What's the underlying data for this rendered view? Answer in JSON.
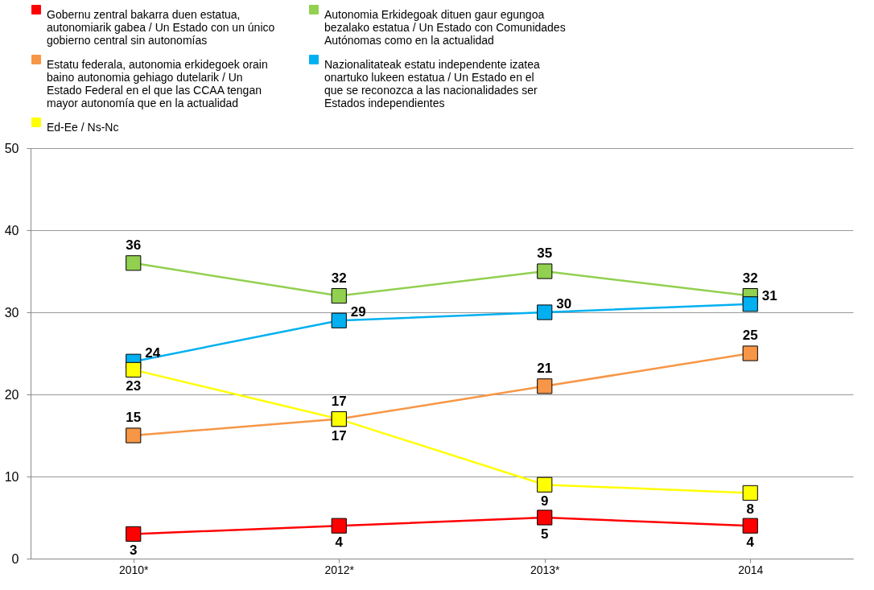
{
  "chart_data": {
    "type": "line",
    "categories": [
      "2010*",
      "2012*",
      "2013*",
      "2014"
    ],
    "series": [
      {
        "name": "Gobernu zentral bakarra duen estatua, autonomiarik gabea / Un Estado con un único gobierno central sin autonomías",
        "color": "#ff0000",
        "values": [
          3,
          4,
          5,
          4
        ]
      },
      {
        "name": "Autonomia Erkidegoak dituen gaur egungoa bezalako estatua / Un Estado con Comunidades Autónomas como en la actualidad",
        "color": "#92d050",
        "values": [
          36,
          32,
          35,
          32
        ]
      },
      {
        "name": "Estatu federala, autonomia erkidegoek orain baino autonomia gehiago dutelarik / Un Estado Federal en el que las CCAA tengan mayor autonomía que en la actualidad",
        "color": "#f79646",
        "values": [
          15,
          17,
          21,
          25
        ]
      },
      {
        "name": "Nazionalitateak estatu independente izatea onartuko lukeen estatua / Un Estado en el que se reconozca a las nacionalidades ser Estados independientes",
        "color": "#00b0f0",
        "values": [
          24,
          29,
          30,
          31
        ]
      },
      {
        "name": "Ed-Ee / Ns-Nc",
        "color": "#ffff00",
        "values": [
          23,
          17,
          9,
          8
        ]
      }
    ],
    "ylim": [
      0,
      50
    ],
    "yticks": [
      0,
      10,
      20,
      30,
      40,
      50
    ],
    "grid": "y",
    "legend": "top",
    "marker": "square",
    "data_labels": true
  }
}
